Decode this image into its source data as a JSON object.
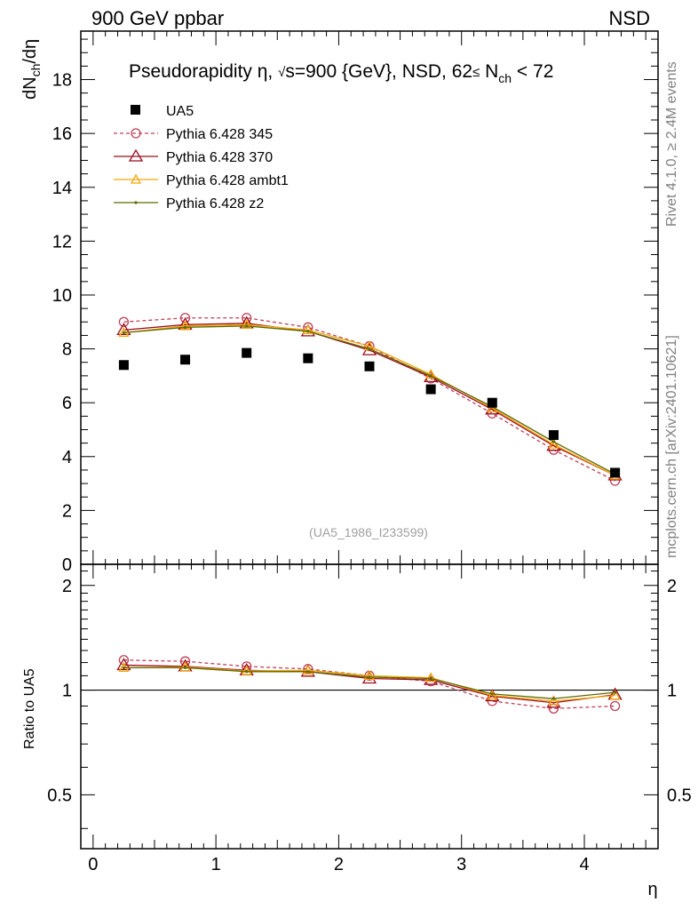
{
  "header": {
    "left": "900 GeV ppbar",
    "right": "NSD"
  },
  "side_labels": {
    "rivet": "Rivet 4.1.0, ≥ 2.4M events",
    "mcplots": "mcplots.cern.ch [arXiv:2401.10621]"
  },
  "chart_data": [
    {
      "id": "main",
      "type": "line",
      "title": "Pseudorapidity η, √s=900 {GeV}, NSD, 62≤ N_ch < 72",
      "title_parts": {
        "prefix": "Pseudorapidity η, ",
        "sqrt": "√",
        "s_rest": "s=900 {GeV}, NSD, 62",
        "le": "≤",
        "n": " N",
        "sub": "ch",
        "tail": " < 72"
      },
      "ylabel": "dN_ch/dη",
      "ylabel_parts": {
        "a": "dN",
        "sub": "ch",
        "b": "/dη"
      },
      "watermark": "(UA5_1986_I233599)",
      "xlim": [
        -0.1,
        4.6
      ],
      "ylim": [
        0,
        19.8
      ],
      "yticks": [
        0,
        2,
        4,
        6,
        8,
        10,
        12,
        14,
        16,
        18
      ],
      "ytick_labels": [
        "0",
        "2",
        "4",
        "6",
        "8",
        "10",
        "12",
        "14",
        "16",
        "18"
      ],
      "x": [
        0.25,
        0.75,
        1.25,
        1.75,
        2.25,
        2.75,
        3.25,
        3.75,
        4.25
      ],
      "data": {
        "name": "UA5",
        "values": [
          7.4,
          7.6,
          7.85,
          7.65,
          7.35,
          6.5,
          6.0,
          4.8,
          3.4
        ]
      },
      "series": [
        {
          "name": "Pythia 6.428 345",
          "color": "#c0405a",
          "dash": "dashed",
          "marker": "circle",
          "values": [
            9.0,
            9.15,
            9.15,
            8.8,
            8.1,
            6.9,
            5.6,
            4.25,
            3.1
          ]
        },
        {
          "name": "Pythia 6.428 370",
          "color": "#9c0d1e",
          "dash": "solid",
          "marker": "triangle",
          "values": [
            8.7,
            8.9,
            8.95,
            8.65,
            7.95,
            6.95,
            5.75,
            4.4,
            3.3
          ]
        },
        {
          "name": "Pythia 6.428 ambt1",
          "color": "#f5a80a",
          "dash": "solid",
          "marker": "triangle-small",
          "values": [
            8.6,
            8.85,
            8.9,
            8.7,
            8.1,
            7.05,
            5.8,
            4.45,
            3.3
          ]
        },
        {
          "name": "Pythia 6.428 z2",
          "color": "#5e6b00",
          "dash": "solid",
          "marker": "dot",
          "values": [
            8.6,
            8.8,
            8.85,
            8.65,
            8.0,
            7.0,
            5.85,
            4.55,
            3.35
          ]
        }
      ]
    },
    {
      "id": "ratio",
      "type": "line",
      "ylabel": "Ratio to UA5",
      "xlabel": "η",
      "xlim": [
        -0.1,
        4.6
      ],
      "ylim": [
        0.35,
        2.3
      ],
      "yscale": "log",
      "yticks": [
        0.5,
        1,
        2
      ],
      "ytick_labels": [
        "0.5",
        "1",
        "2"
      ],
      "xticks": [
        0,
        1,
        2,
        3,
        4
      ],
      "xtick_labels": [
        "0",
        "1",
        "2",
        "3",
        "4"
      ],
      "x": [
        0.25,
        0.75,
        1.25,
        1.75,
        2.25,
        2.75,
        3.25,
        3.75,
        4.25
      ],
      "reference": 1,
      "series": [
        {
          "name": "Pythia 6.428 345",
          "color": "#c0405a",
          "dash": "dashed",
          "marker": "circle",
          "values": [
            1.22,
            1.21,
            1.17,
            1.15,
            1.1,
            1.06,
            0.93,
            0.885,
            0.9
          ]
        },
        {
          "name": "Pythia 6.428 370",
          "color": "#9c0d1e",
          "dash": "solid",
          "marker": "triangle",
          "values": [
            1.18,
            1.17,
            1.14,
            1.13,
            1.08,
            1.07,
            0.96,
            0.92,
            0.97
          ]
        },
        {
          "name": "Pythia 6.428 ambt1",
          "color": "#f5a80a",
          "dash": "solid",
          "marker": "triangle-small",
          "values": [
            1.16,
            1.165,
            1.135,
            1.14,
            1.1,
            1.085,
            0.965,
            0.93,
            0.965
          ]
        },
        {
          "name": "Pythia 6.428 z2",
          "color": "#5e6b00",
          "dash": "solid",
          "marker": "dot",
          "values": [
            1.16,
            1.16,
            1.13,
            1.13,
            1.09,
            1.08,
            0.975,
            0.945,
            0.985
          ]
        }
      ]
    }
  ]
}
